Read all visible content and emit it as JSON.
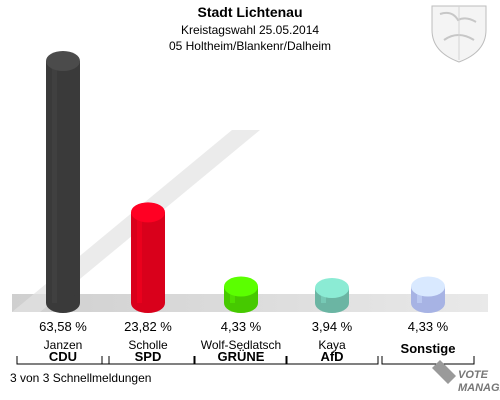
{
  "header": {
    "title": "Stadt Lichtenau",
    "subtitle": "Kreistagswahl 25.05.2014",
    "district": "05 Holtheim/Blankenr/Dalheim"
  },
  "chart_data": {
    "type": "bar",
    "title": "Stadt Lichtenau",
    "categories": [
      "CDU",
      "SPD",
      "GRÜNE",
      "AfD",
      "Sonstige"
    ],
    "candidates": [
      "Janzen",
      "Scholle",
      "Wolf-Sedlatsch",
      "Kaya",
      ""
    ],
    "values": [
      63.58,
      23.82,
      4.33,
      3.94,
      4.33
    ],
    "value_labels": [
      "63,58 %",
      "23,82 %",
      "4,33 %",
      "3,94 %",
      "4,33 %"
    ],
    "colors": [
      "#3a3a3a",
      "#d9001b",
      "#46c900",
      "#6bb5a3",
      "#a7b3e4"
    ],
    "xlabel": "",
    "ylabel": "",
    "grid": false,
    "legend": "none"
  },
  "footer": {
    "status": "3 von 3 Schnellmeldungen",
    "brand_line1": "VOTE",
    "brand_line2": "MANAGER"
  },
  "emblem": {
    "icon": "coat-of-arms-icon"
  }
}
